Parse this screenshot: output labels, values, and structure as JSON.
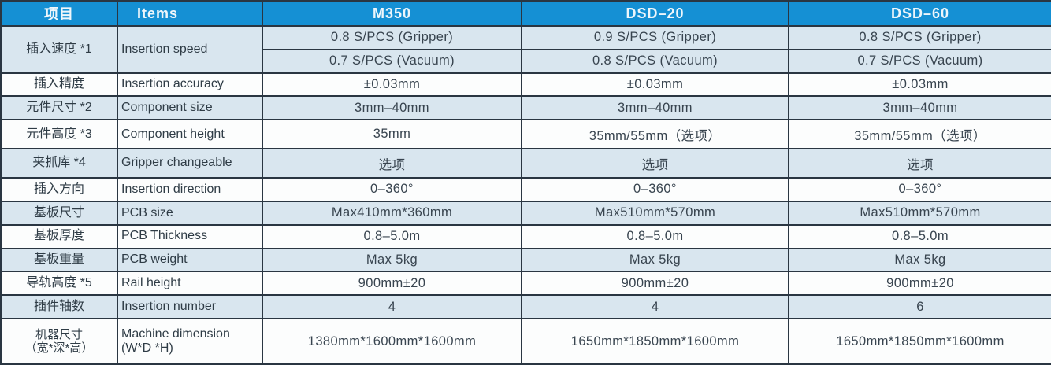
{
  "table": {
    "header": {
      "col_cn": "项目",
      "col_en": "Items",
      "models": [
        "M350",
        "DSD–20",
        "DSD–60"
      ]
    },
    "rows": [
      {
        "cn": "插入速度 *1",
        "en": "Insertion speed",
        "values_top": [
          "0.8 S/PCS (Gripper)",
          "0.9 S/PCS (Gripper)",
          "0.8 S/PCS (Gripper)"
        ],
        "values_bottom": [
          "0.7 S/PCS (Vacuum)",
          "0.8 S/PCS (Vacuum)",
          "0.7 S/PCS (Vacuum)"
        ]
      },
      {
        "cn": "插入精度",
        "en": "Insertion accuracy",
        "values": [
          "±0.03mm",
          "±0.03mm",
          "±0.03mm"
        ]
      },
      {
        "cn": "元件尺寸 *2",
        "en": "Component size",
        "values": [
          "3mm–40mm",
          "3mm–40mm",
          "3mm–40mm"
        ]
      },
      {
        "cn": "元件高度 *3",
        "en": "Component height",
        "values": [
          "35mm",
          "35mm/55mm（选项）",
          "35mm/55mm（选项）"
        ]
      },
      {
        "cn": "夹抓库 *4",
        "en": "Gripper changeable",
        "values": [
          "选项",
          "选项",
          "选项"
        ]
      },
      {
        "cn": "插入方向",
        "en": "Insertion direction",
        "values": [
          "0–360°",
          "0–360°",
          "0–360°"
        ]
      },
      {
        "cn": "基板尺寸",
        "en": "PCB size",
        "values": [
          "Max410mm*360mm",
          "Max510mm*570mm",
          "Max510mm*570mm"
        ]
      },
      {
        "cn": "基板厚度",
        "en": "PCB Thickness",
        "values": [
          "0.8–5.0m",
          "0.8–5.0m",
          "0.8–5.0m"
        ]
      },
      {
        "cn": "基板重量",
        "en": "PCB weight",
        "values": [
          "Max 5kg",
          "Max 5kg",
          "Max 5kg"
        ]
      },
      {
        "cn": "导轨高度 *5",
        "en": "Rail height",
        "values": [
          "900mm±20",
          "900mm±20",
          "900mm±20"
        ]
      },
      {
        "cn": "插件轴数",
        "en": "Insertion number",
        "values": [
          "4",
          "4",
          "6"
        ]
      },
      {
        "cn": "机器尺寸\n（宽*深*高）",
        "en": "Machine dimension\n(W*D *H)",
        "values": [
          "1380mm*1600mm*1600mm",
          "1650mm*1850mm*1600mm",
          "1650mm*1850mm*1600mm"
        ]
      }
    ],
    "colors": {
      "header_blue": "#1590d4",
      "zebra_blue": "#d9e6ef",
      "border": "#2a3642"
    }
  }
}
